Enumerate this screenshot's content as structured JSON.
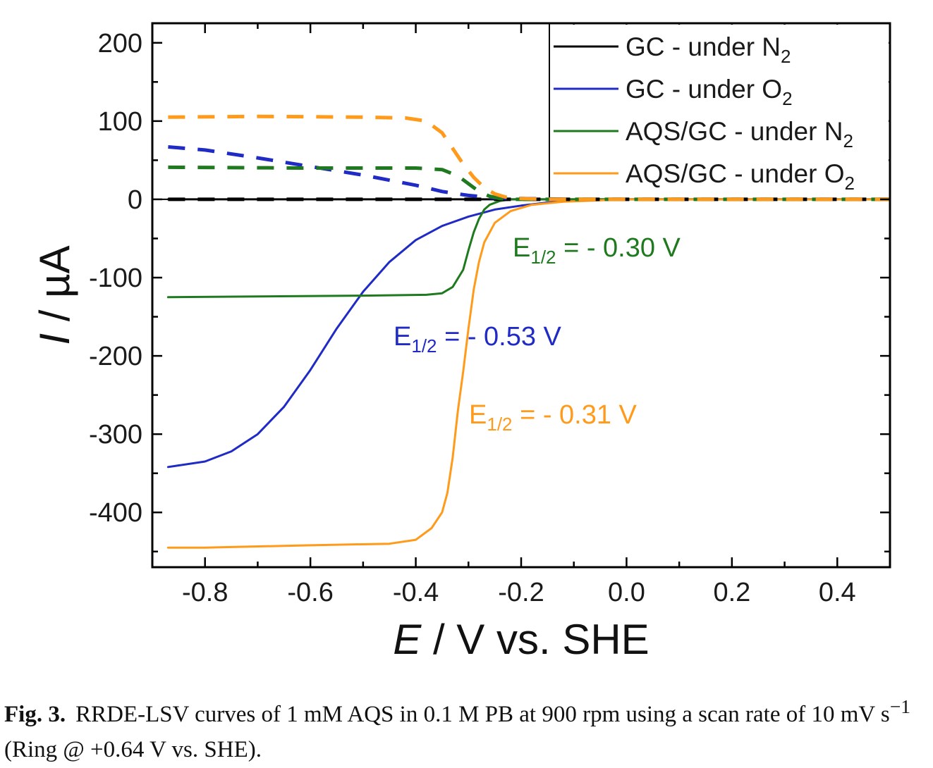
{
  "chart_data": {
    "type": "line",
    "xlabel": "E / V vs. SHE",
    "xlabel_italic": "E",
    "xlabel_rest": " / V vs. SHE",
    "ylabel": "I / µA",
    "ylabel_italic": "I",
    "ylabel_rest": " / µA",
    "xlim": [
      -0.9,
      0.5
    ],
    "ylim": [
      -470,
      225
    ],
    "x_ticks": [
      -0.8,
      -0.6,
      -0.4,
      -0.2,
      0.0,
      0.2,
      0.4
    ],
    "x_tick_labels": [
      "-0.8",
      "-0.6",
      "-0.4",
      "-0.2",
      "0.0",
      "0.2",
      "0.4"
    ],
    "y_ticks": [
      200,
      100,
      0,
      -100,
      -200,
      -300,
      -400
    ],
    "y_tick_labels": [
      "200",
      "100",
      "0",
      "-100",
      "-200",
      "-300",
      "-400"
    ],
    "grid": false,
    "legend_position": "top-right",
    "colors": {
      "gc_n2": "#000000",
      "gc_o2": "#1f2bc4",
      "aqs_n2": "#1f7a1f",
      "aqs_o2": "#ff9a1a"
    },
    "legend": [
      {
        "key": "gc_n2",
        "label": "GC - under N",
        "sub": "2"
      },
      {
        "key": "gc_o2",
        "label": "GC - under O",
        "sub": "2"
      },
      {
        "key": "aqs_n2",
        "label": "AQS/GC - under N",
        "sub": "2"
      },
      {
        "key": "aqs_o2",
        "label": "AQS/GC - under O",
        "sub": "2"
      }
    ],
    "series": [
      {
        "key": "gc_n2",
        "style": "solid",
        "x": [
          -0.87,
          -0.6,
          -0.4,
          -0.2,
          0.0,
          0.2,
          0.5
        ],
        "y": [
          0,
          0,
          0,
          0,
          0,
          0,
          0
        ]
      },
      {
        "key": "gc_o2",
        "style": "solid",
        "x": [
          -0.87,
          -0.8,
          -0.75,
          -0.7,
          -0.65,
          -0.6,
          -0.55,
          -0.5,
          -0.45,
          -0.4,
          -0.35,
          -0.3,
          -0.25,
          -0.2,
          -0.15,
          -0.1,
          0.0,
          0.2,
          0.5
        ],
        "y": [
          -342,
          -335,
          -322,
          -300,
          -265,
          -218,
          -165,
          -118,
          -80,
          -52,
          -34,
          -22,
          -13,
          -8,
          -4,
          -2,
          0,
          0,
          0
        ]
      },
      {
        "key": "aqs_n2",
        "style": "solid",
        "x": [
          -0.87,
          -0.7,
          -0.5,
          -0.38,
          -0.35,
          -0.33,
          -0.31,
          -0.3,
          -0.29,
          -0.28,
          -0.27,
          -0.26,
          -0.24,
          -0.22,
          -0.15,
          0.0,
          0.5
        ],
        "y": [
          -125,
          -124,
          -123,
          -122,
          -120,
          -112,
          -90,
          -65,
          -42,
          -25,
          -13,
          -7,
          -2,
          0,
          0,
          0,
          0
        ]
      },
      {
        "key": "aqs_o2",
        "style": "solid",
        "x": [
          -0.87,
          -0.8,
          -0.6,
          -0.45,
          -0.4,
          -0.37,
          -0.35,
          -0.34,
          -0.33,
          -0.32,
          -0.31,
          -0.3,
          -0.29,
          -0.28,
          -0.27,
          -0.25,
          -0.22,
          -0.18,
          -0.12,
          0.0,
          0.5
        ],
        "y": [
          -445,
          -445,
          -442,
          -440,
          -435,
          -420,
          -400,
          -375,
          -330,
          -270,
          -220,
          -165,
          -115,
          -80,
          -55,
          -30,
          -15,
          -7,
          -3,
          0,
          0
        ]
      },
      {
        "key": "gc_n2",
        "style": "dashed",
        "x": [
          -0.87,
          -0.6,
          -0.4,
          -0.2,
          0.0,
          0.5
        ],
        "y": [
          0,
          0,
          0,
          0,
          0,
          0
        ]
      },
      {
        "key": "gc_o2",
        "style": "dashed",
        "x": [
          -0.87,
          -0.8,
          -0.7,
          -0.6,
          -0.5,
          -0.4,
          -0.35,
          -0.3,
          -0.25,
          -0.2,
          -0.1,
          0.0,
          0.5
        ],
        "y": [
          67,
          63,
          53,
          42,
          31,
          18,
          10,
          5,
          2,
          1,
          0,
          0,
          0
        ]
      },
      {
        "key": "aqs_n2",
        "style": "dashed",
        "x": [
          -0.87,
          -0.6,
          -0.4,
          -0.35,
          -0.32,
          -0.3,
          -0.28,
          -0.26,
          -0.24,
          -0.22,
          -0.15,
          0.0,
          0.5
        ],
        "y": [
          41,
          40,
          40,
          38,
          30,
          20,
          10,
          4,
          1,
          0,
          0,
          0,
          0
        ]
      },
      {
        "key": "aqs_o2",
        "style": "dashed",
        "x": [
          -0.87,
          -0.7,
          -0.5,
          -0.42,
          -0.38,
          -0.35,
          -0.33,
          -0.31,
          -0.29,
          -0.27,
          -0.25,
          -0.23,
          -0.2,
          -0.15,
          0.0,
          0.5
        ],
        "y": [
          105,
          106,
          105,
          104,
          100,
          85,
          65,
          45,
          28,
          15,
          7,
          3,
          1,
          0,
          0,
          0
        ]
      }
    ],
    "annotations": [
      {
        "key": "aqs_n2",
        "main": "E",
        "sub": "1/2",
        "rest": " = - 0.30 V"
      },
      {
        "key": "gc_o2",
        "main": "E",
        "sub": "1/2",
        "rest": " = - 0.53 V"
      },
      {
        "key": "aqs_o2",
        "main": "E",
        "sub": "1/2",
        "rest": " = - 0.31 V"
      }
    ]
  },
  "caption": {
    "label": "Fig. 3.",
    "text_before_sup": "RRDE-LSV curves of 1 mM AQS in 0.1 M PB at 900 rpm using a scan rate of 10 mV s",
    "sup": "−1",
    "text_after_sup": " (Ring @ +0.64 V vs. SHE)."
  }
}
